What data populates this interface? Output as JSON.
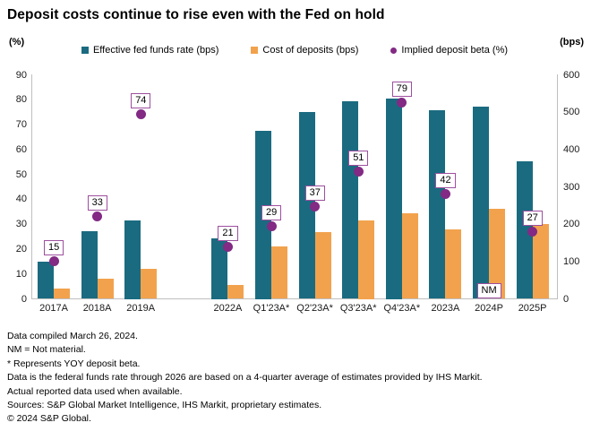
{
  "title": "Deposit costs continue to rise even with the Fed on hold",
  "legend": [
    {
      "label": "Effective fed funds rate (bps)",
      "color": "#1a6b80",
      "marker": "square"
    },
    {
      "label": "Cost of deposits (bps)",
      "color": "#f2a24d",
      "marker": "square"
    },
    {
      "label": "Implied deposit beta (%)",
      "color": "#822a84",
      "marker": "circle"
    }
  ],
  "chart_data": {
    "type": "bar",
    "categories": [
      "2017A",
      "2018A",
      "2019A",
      "2022A",
      "Q1'23A*",
      "Q2'23A*",
      "Q3'23A*",
      "Q4'23A*",
      "2023A",
      "2024P",
      "2025P"
    ],
    "series": [
      {
        "name": "Effective fed funds rate (bps)",
        "type": "bar",
        "axis": "right",
        "color": "#1a6b80",
        "values": [
          100,
          181,
          210,
          162,
          450,
          500,
          530,
          537,
          506,
          514,
          368
        ]
      },
      {
        "name": "Cost of deposits (bps)",
        "type": "bar",
        "axis": "right",
        "color": "#f2a24d",
        "values": [
          28,
          55,
          80,
          38,
          140,
          178,
          210,
          230,
          185,
          241,
          200
        ]
      },
      {
        "name": "Implied deposit beta (%)",
        "type": "point",
        "axis": "left",
        "color": "#822a84",
        "values": [
          15,
          33,
          74,
          21,
          29,
          37,
          51,
          79,
          42,
          null,
          27
        ],
        "labels": [
          "15",
          "33",
          "74",
          "21",
          "29",
          "37",
          "51",
          "79",
          "42",
          "NM",
          "27"
        ]
      }
    ],
    "left_axis": {
      "label": "(%)",
      "min": 0,
      "max": 90,
      "ticks": [
        90,
        80,
        70,
        60,
        50,
        40,
        30,
        20,
        10,
        0
      ]
    },
    "right_axis": {
      "label": "(bps)",
      "min": 0,
      "max": 600,
      "ticks": [
        600,
        500,
        400,
        300,
        200,
        100,
        0
      ]
    },
    "grid": false,
    "legend_position": "top",
    "gap_after_category_index": 2,
    "label_box_border_color": "#9d4f9e"
  },
  "footnotes": [
    "Data compiled March 26, 2024.",
    "NM = Not material.",
    "* Represents YOY deposit beta.",
    "Data is the federal funds rate through 2026 are based on a 4-quarter average of estimates provided by IHS Markit.",
    "Actual reported data used when available.",
    "Sources: S&P Global Market Intelligence, IHS Markit, proprietary estimates.",
    "© 2024 S&P Global."
  ]
}
